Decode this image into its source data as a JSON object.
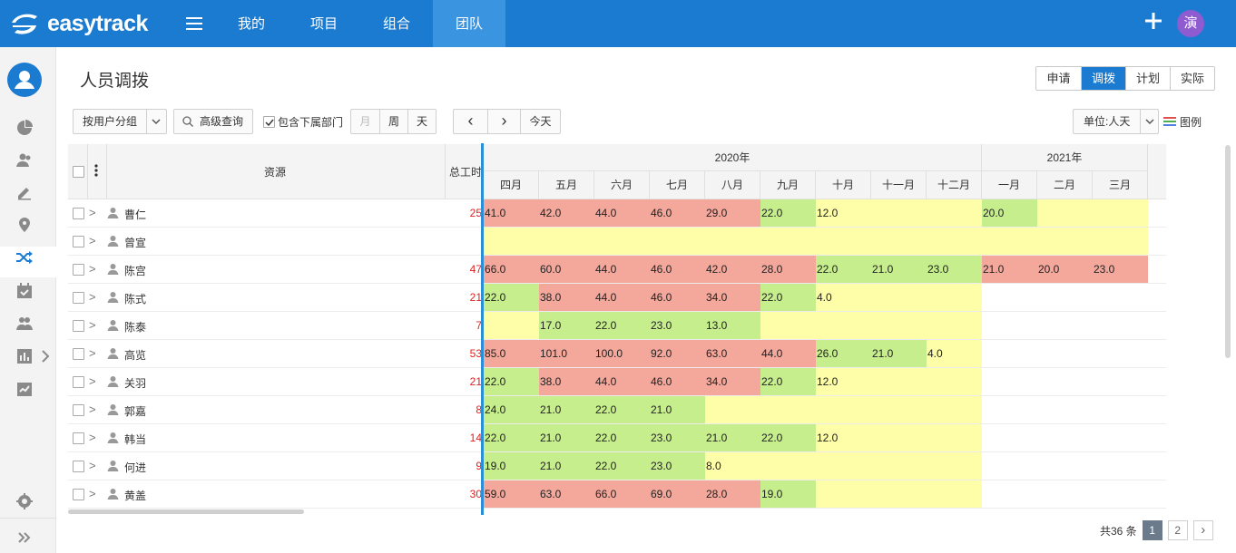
{
  "app": {
    "logo_text": "easytrack",
    "avatar_text": "演"
  },
  "nav": [
    {
      "label": "我的"
    },
    {
      "label": "项目"
    },
    {
      "label": "组合"
    },
    {
      "label": "团队"
    }
  ],
  "page": {
    "title": "人员调拨"
  },
  "view_tabs": [
    "申请",
    "调拨",
    "计划",
    "实际"
  ],
  "toolbar": {
    "group_by": "按用户分组",
    "advanced_search": "高级查询",
    "include_sub": "包含下属部门",
    "range_month": "月",
    "range_week": "周",
    "range_day": "天",
    "prev": "‹",
    "next": "›",
    "today": "今天",
    "unit": "单位:人天",
    "legend": "图例"
  },
  "table": {
    "col_resource": "资源",
    "col_total": "总工时",
    "years": [
      {
        "label": "2020年"
      },
      {
        "label": "2021年"
      }
    ],
    "months": [
      "四月",
      "五月",
      "六月",
      "七月",
      "八月",
      "九月",
      "十月",
      "十一月",
      "十二月",
      "一月",
      "二月",
      "三月"
    ],
    "rows": [
      {
        "name": "曹仁",
        "total": "25",
        "cells": [
          "41.0",
          "42.0",
          "44.0",
          "46.0",
          "29.0",
          "22.0",
          "12.0",
          "",
          "",
          "20.0",
          "",
          ""
        ]
      },
      {
        "name": "曾宣",
        "total": "",
        "cells": [
          "",
          "",
          "",
          "",
          "",
          "",
          "",
          "",
          "",
          "",
          "",
          ""
        ]
      },
      {
        "name": "陈宫",
        "total": "47",
        "cells": [
          "66.0",
          "60.0",
          "44.0",
          "46.0",
          "42.0",
          "28.0",
          "22.0",
          "21.0",
          "23.0",
          "21.0",
          "20.0",
          "23.0"
        ]
      },
      {
        "name": "陈式",
        "total": "21",
        "cells": [
          "22.0",
          "38.0",
          "44.0",
          "46.0",
          "34.0",
          "22.0",
          "4.0",
          "",
          "",
          "",
          "",
          ""
        ]
      },
      {
        "name": "陈泰",
        "total": "7",
        "cells": [
          "",
          "17.0",
          "22.0",
          "23.0",
          "13.0",
          "",
          "",
          "",
          "",
          "",
          "",
          ""
        ]
      },
      {
        "name": "高览",
        "total": "53",
        "cells": [
          "85.0",
          "101.0",
          "100.0",
          "92.0",
          "63.0",
          "44.0",
          "26.0",
          "21.0",
          "4.0",
          "",
          "",
          ""
        ]
      },
      {
        "name": "关羽",
        "total": "21",
        "cells": [
          "22.0",
          "38.0",
          "44.0",
          "46.0",
          "34.0",
          "22.0",
          "12.0",
          "",
          "",
          "",
          "",
          ""
        ]
      },
      {
        "name": "郭嘉",
        "total": "8",
        "cells": [
          "24.0",
          "21.0",
          "22.0",
          "21.0",
          "",
          "",
          "",
          "",
          "",
          "",
          "",
          ""
        ]
      },
      {
        "name": "韩当",
        "total": "14",
        "cells": [
          "22.0",
          "21.0",
          "22.0",
          "23.0",
          "21.0",
          "22.0",
          "12.0",
          "",
          "",
          "",
          "",
          ""
        ]
      },
      {
        "name": "何进",
        "total": "9",
        "cells": [
          "19.0",
          "21.0",
          "22.0",
          "23.0",
          "8.0",
          "",
          "",
          "",
          "",
          "",
          "",
          ""
        ]
      },
      {
        "name": "黄盖",
        "total": "30",
        "cells": [
          "59.0",
          "63.0",
          "66.0",
          "69.0",
          "28.0",
          "19.0",
          "",
          "",
          "",
          "",
          "",
          ""
        ]
      }
    ],
    "fill": [
      "RRRRRGYYYGYY",
      "YYYYYYYYYYYY",
      "RRRRRRGGGRRR",
      "GRRRRGYYY...",
      "YGGGGYYYY...",
      "RRRRRRGGY...",
      "GRRRRGYYY...",
      "GGGGYYYYY...",
      "GGGGGGYYY...",
      "GGGGYYYYY...",
      "RRRRRGYYY..."
    ]
  },
  "colors": {
    "over": "#f4a79b",
    "ok": "#c6ee8c",
    "under": "#fefea8",
    "accent": "#1a7bd0"
  },
  "pager": {
    "total_text": "共36 条",
    "pages": [
      "1",
      "2"
    ],
    "next": "›",
    "current": "1"
  }
}
